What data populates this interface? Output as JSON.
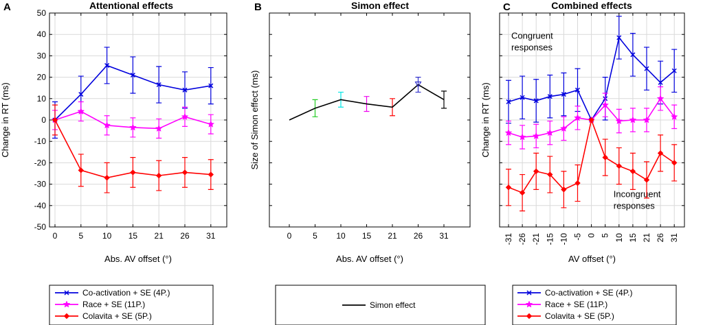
{
  "figure": {
    "legend_attn": [
      {
        "label": "Co-activation + SE (4P.)",
        "color": "#0000dd",
        "marker": "x"
      },
      {
        "label": "Race  + SE (11P.)",
        "color": "#ff00ff",
        "marker": "star"
      },
      {
        "label": "Colavita  + SE (5P.)",
        "color": "#ff0000",
        "marker": "diamond"
      }
    ],
    "legend_simon": [
      {
        "label": "Simon effect",
        "color": "#000000",
        "marker": "none"
      }
    ],
    "legend_comb": [
      {
        "label": "Co-activation + SE (4P.)",
        "color": "#0000dd",
        "marker": "x"
      },
      {
        "label": "Race  + SE (11P.)",
        "color": "#ff00ff",
        "marker": "star"
      },
      {
        "label": "Colavita  + SE (5P.)",
        "color": "#ff0000",
        "marker": "diamond"
      }
    ]
  },
  "chart_data": [
    {
      "panel": "A",
      "type": "line",
      "title": "Attentional effects",
      "xlabel": "Abs. AV offset (°)",
      "ylabel": "Change in RT (ms)",
      "categories": [
        "0",
        "5",
        "10",
        "15",
        "21",
        "26",
        "31"
      ],
      "ylim": [
        -50,
        50
      ],
      "yticks": [
        -50,
        -40,
        -30,
        -20,
        -10,
        0,
        10,
        20,
        30,
        40,
        50
      ],
      "grid": true,
      "series": [
        {
          "name": "Co-activation + SE (4P.)",
          "color": "#0000dd",
          "marker": "x",
          "values": [
            0,
            12,
            25.5,
            21,
            16.5,
            14,
            16
          ],
          "errors": [
            8.5,
            8.5,
            8.5,
            8.5,
            8.5,
            8.5,
            8.5
          ]
        },
        {
          "name": "Race  + SE (11P.)",
          "color": "#ff00ff",
          "marker": "star",
          "values": [
            0,
            4,
            -2.5,
            -3.5,
            -4,
            1.5,
            -2
          ],
          "errors": [
            4.5,
            4.5,
            4.5,
            4.5,
            4.5,
            4.5,
            4.5
          ]
        },
        {
          "name": "Colavita  + SE (5P.)",
          "color": "#ff0000",
          "marker": "diamond",
          "values": [
            0,
            -23.5,
            -27,
            -24.5,
            -26,
            -24.5,
            -25.5
          ],
          "errors": [
            7,
            7.5,
            7,
            7,
            7,
            7,
            7
          ]
        }
      ]
    },
    {
      "panel": "B",
      "type": "line",
      "title": "Simon effect",
      "xlabel": "Abs. AV offset (°)",
      "ylabel": "Size of Simon effect (ms)",
      "categories": [
        "0",
        "5",
        "10",
        "15",
        "21",
        "26",
        "31"
      ],
      "ylim": [
        -50,
        50
      ],
      "grid": false,
      "series": [
        {
          "name": "Simon effect",
          "color": "#000000",
          "values": [
            0,
            5.5,
            9.5,
            7.5,
            6,
            16.5,
            9.5
          ],
          "errors": [
            0,
            4,
            3.5,
            3.5,
            4,
            3.5,
            4
          ],
          "point_colors": [
            "#000000",
            "#22cc22",
            "#00e5e5",
            "#ee00ee",
            "#ff0000",
            "#3333cc",
            "#000000"
          ]
        }
      ]
    },
    {
      "panel": "C",
      "type": "line",
      "title": "Combined effects",
      "xlabel": "AV offset (°)",
      "ylabel": "Change in RT (ms)",
      "categories": [
        "-31",
        "-26",
        "-21",
        "-15",
        "-10",
        "-5",
        "0",
        "5",
        "10",
        "15",
        "21",
        "26",
        "31"
      ],
      "ylim": [
        -50,
        50
      ],
      "grid": true,
      "annotations": [
        {
          "text": "Congruent\nresponses",
          "x_index": 0.2,
          "y": 38
        },
        {
          "text": "Incongruent\nresponses",
          "x_index": 7.6,
          "y": -36
        }
      ],
      "series": [
        {
          "name": "Co-activation + SE (4P.)",
          "color": "#0000dd",
          "marker": "x",
          "values": [
            8.5,
            10.5,
            9,
            11,
            12,
            14,
            0,
            10,
            38.5,
            30.5,
            24,
            17.5,
            23
          ],
          "errors": [
            10,
            10,
            10,
            10,
            10,
            10,
            0,
            10,
            10,
            10,
            10,
            10,
            10
          ]
        },
        {
          "name": "Race  + SE (11P.)",
          "color": "#ff00ff",
          "marker": "star",
          "values": [
            -6,
            -8,
            -7.5,
            -6,
            -4,
            1,
            0,
            7,
            -0.5,
            0,
            0,
            10,
            1.5
          ],
          "errors": [
            5.5,
            5.5,
            5.5,
            5.5,
            5.5,
            5.5,
            0,
            5.5,
            5.5,
            5.5,
            5.5,
            5.5,
            5.5
          ]
        },
        {
          "name": "Colavita  + SE (5P.)",
          "color": "#ff0000",
          "marker": "diamond",
          "values": [
            -31.5,
            -34,
            -24,
            -25.5,
            -32.5,
            -29.5,
            0,
            -17.5,
            -21.5,
            -24,
            -28,
            -15.5,
            -20
          ],
          "errors": [
            8.5,
            8.5,
            8.5,
            8.5,
            8.5,
            8.5,
            0,
            8.5,
            8.5,
            8.5,
            8.5,
            8.5,
            8.5
          ]
        }
      ]
    }
  ]
}
